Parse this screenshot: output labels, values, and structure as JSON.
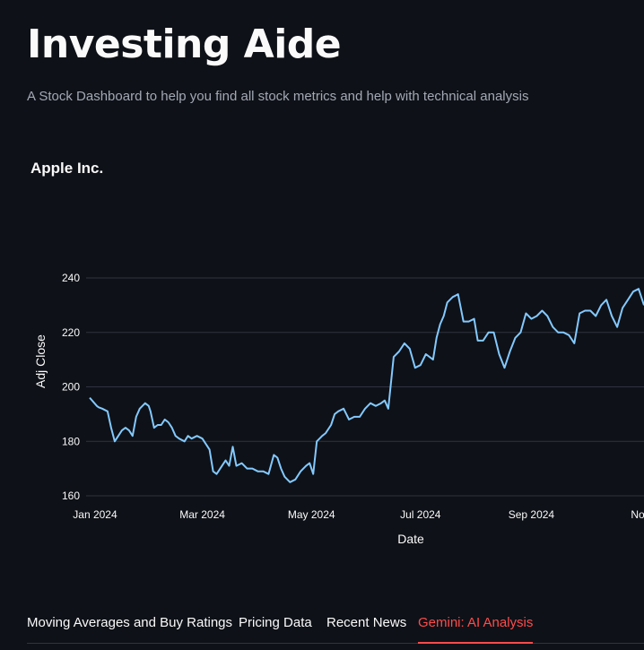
{
  "header": {
    "title": "Investing Aide",
    "subtitle": "A Stock Dashboard to help you find all stock metrics and help with technical analysis"
  },
  "company": {
    "name": "Apple Inc."
  },
  "chart_data": {
    "type": "line",
    "xlabel": "Date",
    "ylabel": "Adj Close",
    "xtick_labels": [
      "Jan 2024",
      "Mar 2024",
      "May 2024",
      "Jul 2024",
      "Sep 2024",
      "Nov"
    ],
    "yticks": [
      160,
      180,
      200,
      220,
      240
    ],
    "ylim": [
      160,
      240
    ],
    "grid": true,
    "line_color": "#83c9ff",
    "series": [
      {
        "x": [
          "2023-12-29",
          "2024-01-02",
          "2024-01-03",
          "2024-01-05",
          "2024-01-08",
          "2024-01-10",
          "2024-01-12",
          "2024-01-16",
          "2024-01-18",
          "2024-01-20",
          "2024-01-22",
          "2024-01-24",
          "2024-01-26",
          "2024-01-29",
          "2024-01-31",
          "2024-02-01",
          "2024-02-03",
          "2024-02-05",
          "2024-02-07",
          "2024-02-09",
          "2024-02-11",
          "2024-02-13",
          "2024-02-15",
          "2024-02-17",
          "2024-02-20",
          "2024-02-22",
          "2024-02-24",
          "2024-02-27",
          "2024-03-01",
          "2024-03-05",
          "2024-03-07",
          "2024-03-09",
          "2024-03-12",
          "2024-03-14",
          "2024-03-16",
          "2024-03-18",
          "2024-03-20",
          "2024-03-23",
          "2024-03-26",
          "2024-03-29",
          "2024-04-01",
          "2024-04-04",
          "2024-04-07",
          "2024-04-10",
          "2024-04-12",
          "2024-04-14",
          "2024-04-16",
          "2024-04-19",
          "2024-04-22",
          "2024-04-25",
          "2024-04-28",
          "2024-04-30",
          "2024-05-02",
          "2024-05-04",
          "2024-05-07",
          "2024-05-09",
          "2024-05-12",
          "2024-05-14",
          "2024-05-16",
          "2024-05-19",
          "2024-05-22",
          "2024-05-25",
          "2024-05-28",
          "2024-05-31",
          "2024-06-03",
          "2024-06-06",
          "2024-06-09",
          "2024-06-11",
          "2024-06-13",
          "2024-06-16",
          "2024-06-19",
          "2024-06-22",
          "2024-06-25",
          "2024-06-28",
          "2024-07-01",
          "2024-07-04",
          "2024-07-08",
          "2024-07-10",
          "2024-07-12",
          "2024-07-14",
          "2024-07-16",
          "2024-07-19",
          "2024-07-22",
          "2024-07-25",
          "2024-07-28",
          "2024-07-31",
          "2024-08-02",
          "2024-08-05",
          "2024-08-08",
          "2024-08-11",
          "2024-08-14",
          "2024-08-17",
          "2024-08-20",
          "2024-08-23",
          "2024-08-26",
          "2024-08-29",
          "2024-09-01",
          "2024-09-04",
          "2024-09-07",
          "2024-09-10",
          "2024-09-13",
          "2024-09-16",
          "2024-09-19",
          "2024-09-22",
          "2024-09-25",
          "2024-09-28",
          "2024-10-01",
          "2024-10-04",
          "2024-10-07",
          "2024-10-10",
          "2024-10-13",
          "2024-10-16",
          "2024-10-19",
          "2024-10-22",
          "2024-10-25",
          "2024-10-28",
          "2024-10-31",
          "2024-11-03"
        ],
        "y": [
          196,
          193,
          192.5,
          192,
          191,
          185,
          180,
          184,
          185,
          184,
          182,
          189,
          192,
          194,
          193,
          191,
          185,
          186,
          186,
          188,
          187,
          185,
          182,
          181,
          180,
          182,
          181,
          182,
          181,
          177,
          169,
          168,
          171,
          173,
          171,
          178,
          171,
          172,
          170,
          170,
          169,
          169,
          168,
          175,
          174,
          170,
          167,
          165,
          166,
          169,
          171,
          172,
          168,
          180,
          182,
          183,
          186,
          190,
          191,
          192,
          188,
          189,
          189,
          192,
          194,
          193,
          194,
          195,
          192,
          211,
          213,
          216,
          214,
          207,
          208,
          212,
          210,
          218,
          223,
          226,
          231,
          233,
          234,
          224,
          224,
          225,
          217,
          217,
          220,
          220,
          212,
          207,
          213,
          218,
          220,
          227,
          225,
          226,
          228,
          226,
          222,
          220,
          220,
          219,
          216,
          227,
          228,
          228,
          226,
          230,
          232,
          226,
          222,
          229,
          232,
          235,
          236,
          230
        ]
      }
    ]
  },
  "tabs": [
    {
      "label": "Moving Averages and Buy Ratings",
      "active": false
    },
    {
      "label": "Pricing Data",
      "active": false
    },
    {
      "label": "Recent News",
      "active": false
    },
    {
      "label": "Gemini: AI Analysis",
      "active": true
    }
  ],
  "colors": {
    "background": "#0e1117",
    "text": "#fafafa",
    "muted_text": "#a3a8b4",
    "accent": "#ff4b4b",
    "grid": "#31333f"
  }
}
